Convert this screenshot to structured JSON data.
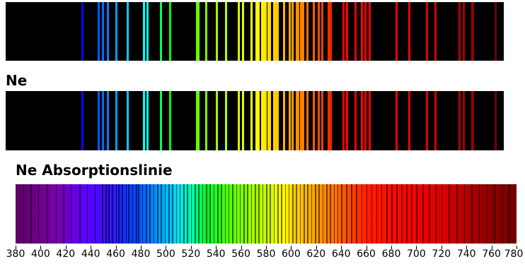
{
  "labels": {
    "ne": "Ne",
    "absorption": "Ne Absorptionslinie"
  },
  "axis": {
    "ticks": [
      "380",
      "400",
      "420",
      "440",
      "460",
      "480",
      "500",
      "520",
      "540",
      "560",
      "580",
      "600",
      "620",
      "640",
      "660",
      "680",
      "700",
      "720",
      "740",
      "760",
      "780"
    ]
  },
  "emission_lines_nm": [
    440.9,
    453.8,
    454.0,
    457.5,
    461.0,
    467.9,
    477.2,
    490.0,
    493.0,
    504.0,
    511.0,
    532.6,
    533.5,
    534.0,
    540.1,
    549.0,
    556.0,
    566.3,
    569.8,
    576.4,
    580.4,
    582.0,
    585.2,
    586.8,
    588.2,
    590.2,
    591.5,
    594.5,
    596.5,
    597.5,
    602.9,
    607.4,
    609.6,
    612.8,
    614.3,
    616.4,
    618.2,
    621.7,
    626.6,
    630.5,
    633.4,
    638.3,
    640.2,
    650.7,
    653.3,
    659.9,
    665.2,
    667.8,
    671.7,
    692.9,
    703.2,
    717.4,
    724.5,
    743.9,
    747.2,
    753.6,
    754.4,
    772.5
  ],
  "absorption_lines_nm": [
    386,
    392,
    398,
    405,
    412,
    418,
    424,
    431,
    437,
    443,
    449,
    452,
    454,
    457,
    460,
    462,
    465,
    468,
    470,
    473,
    476,
    478,
    481,
    484,
    487,
    490,
    493,
    496,
    499,
    502,
    505,
    508,
    511,
    514,
    517,
    520,
    523,
    526,
    529,
    532,
    535,
    538,
    541,
    544,
    547,
    550,
    553,
    556,
    559,
    562,
    565,
    568,
    571,
    574,
    577,
    580,
    583,
    586,
    589,
    592,
    595,
    598,
    601,
    604,
    607,
    610,
    613,
    616,
    619,
    622,
    625,
    628,
    631,
    634,
    637,
    640,
    644,
    648,
    652,
    656,
    660,
    664,
    668,
    672,
    676,
    680,
    684,
    688,
    692,
    696,
    700,
    705,
    710,
    715,
    720,
    726,
    732,
    738,
    744,
    750,
    756,
    762,
    768,
    774
  ]
}
